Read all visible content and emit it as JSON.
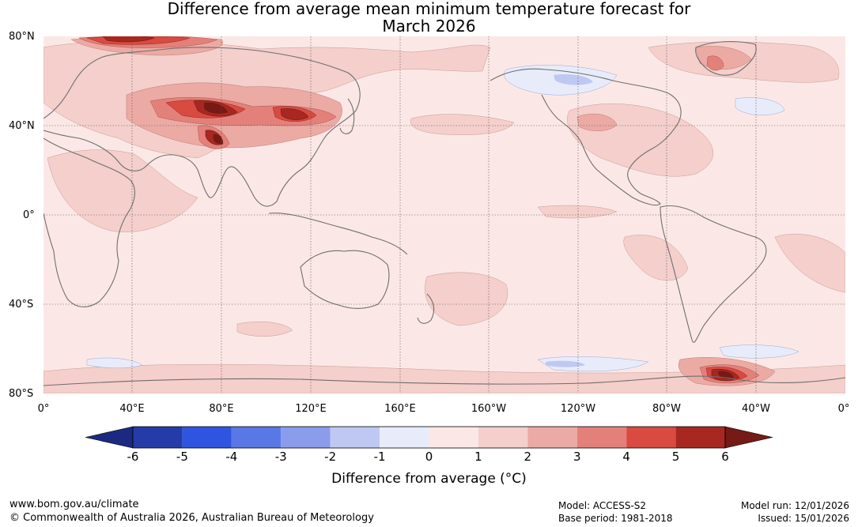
{
  "title": {
    "line1": "Difference from average mean minimum temperature forecast for",
    "line2": "March 2026"
  },
  "map": {
    "lat_labels": [
      "80°N",
      "40°N",
      "0°",
      "40°S",
      "80°S"
    ],
    "lon_labels": [
      "0°",
      "40°E",
      "80°E",
      "120°E",
      "160°E",
      "160°W",
      "120°W",
      "80°W",
      "40°W",
      "0°"
    ],
    "background_anomaly_color": "#fbe8e6"
  },
  "colorbar": {
    "ticks": [
      "-6",
      "-5",
      "-4",
      "-3",
      "-2",
      "-1",
      "0",
      "1",
      "2",
      "3",
      "4",
      "5",
      "6"
    ],
    "colors": [
      "#253ca8",
      "#2f55e0",
      "#5a78e5",
      "#8a9ceb",
      "#bfc8f2",
      "#e8ecfa",
      "#fbe8e6",
      "#f4cfcb",
      "#ecaaa4",
      "#e4807a",
      "#d94a40",
      "#a82821"
    ],
    "low_extend_color": "#1b2a80",
    "high_extend_color": "#751a15",
    "label": "Difference from average (°C)"
  },
  "footer": {
    "website": "www.bom.gov.au/climate",
    "copyright": "© Commonwealth of Australia 2026, Australian Bureau of Meteorology",
    "model": "Model: ACCESS-S2",
    "base_period": "Base period: 1981-2018",
    "model_run": "Model run: 12/01/2026",
    "issued": "Issued: 15/01/2026"
  }
}
